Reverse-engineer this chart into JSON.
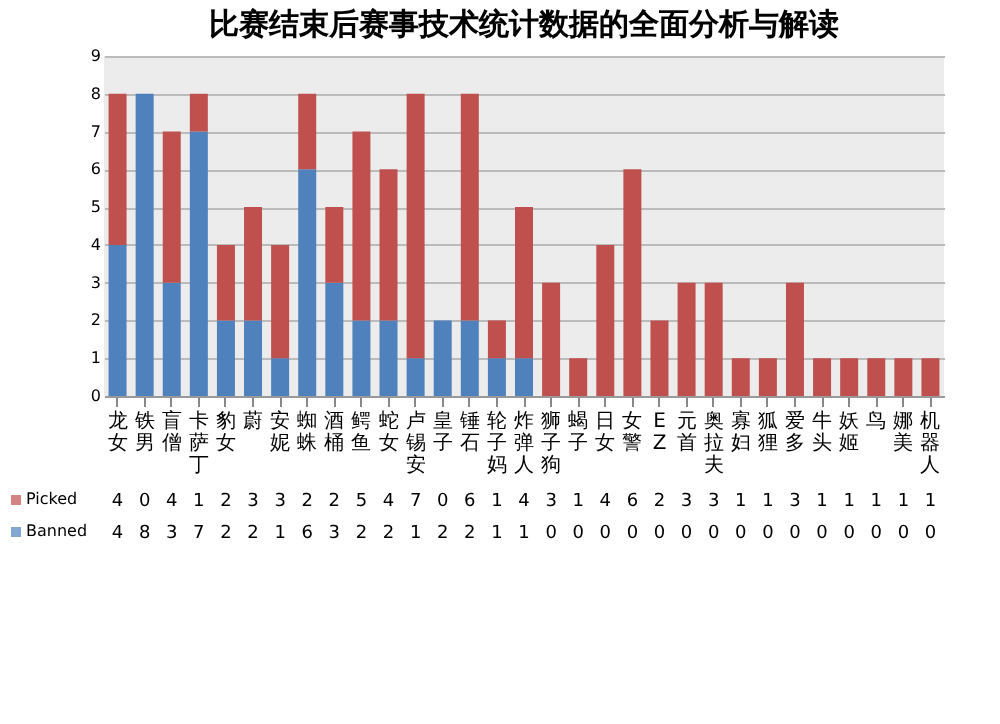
{
  "chart_data": {
    "type": "bar",
    "title": "比赛结束后赛事技术统计数据的全面分析与解读",
    "stacked": true,
    "data_labels": true,
    "legend": "bottom left",
    "grid": "y",
    "categories": [
      "龙女",
      "铁男",
      "盲僧",
      "卡萨丁",
      "豹女",
      "蔚",
      "安妮",
      "蜘蛛",
      "酒桶",
      "鳄鱼",
      "蛇女",
      "卢锡安",
      "皇子",
      "锤石",
      "轮子妈",
      "炸弹人",
      "狮子狗",
      "蝎子",
      "日女",
      "女警",
      "EZ",
      "元首",
      "奥拉夫",
      "寡妇",
      "狐狸",
      "爱多",
      "牛头",
      "妖姬",
      "鸟",
      "娜美",
      "机器人"
    ],
    "ylim": [
      0,
      9
    ],
    "yticks": [
      0,
      1,
      2,
      3,
      4,
      5,
      6,
      7,
      8,
      9
    ],
    "series": [
      {
        "name": "Banned",
        "color": "#4f81bd",
        "values": [
          4,
          8,
          3,
          7,
          2,
          2,
          1,
          6,
          3,
          2,
          2,
          1,
          2,
          2,
          1,
          1,
          0,
          0,
          0,
          0,
          0,
          0,
          0,
          0,
          0,
          0,
          0,
          0,
          0,
          0,
          0
        ]
      },
      {
        "name": "Picked",
        "color": "#c0504d",
        "values": [
          4,
          0,
          4,
          1,
          2,
          3,
          3,
          2,
          2,
          5,
          4,
          7,
          0,
          6,
          1,
          4,
          3,
          1,
          4,
          6,
          2,
          3,
          3,
          1,
          1,
          3,
          1,
          1,
          1,
          1,
          1
        ]
      }
    ]
  }
}
